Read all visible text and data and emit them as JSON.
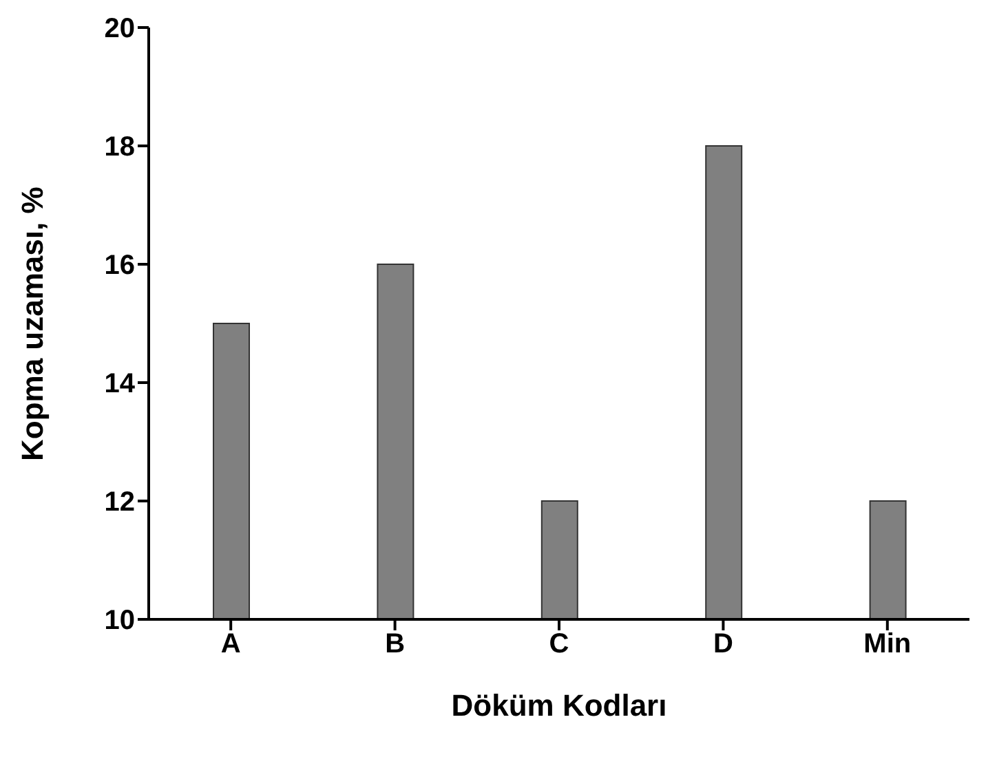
{
  "chart_data": {
    "type": "bar",
    "xlabel": "Döküm Kodları",
    "ylabel": "Kopma uzaması, %",
    "categories": [
      "A",
      "B",
      "C",
      "D",
      "Min"
    ],
    "values": [
      15,
      16,
      12,
      18,
      12
    ],
    "color": "#808080",
    "ylim": [
      10,
      20
    ],
    "yticks": [
      10,
      12,
      14,
      16,
      18,
      20
    ],
    "grid": false,
    "legend": false
  }
}
